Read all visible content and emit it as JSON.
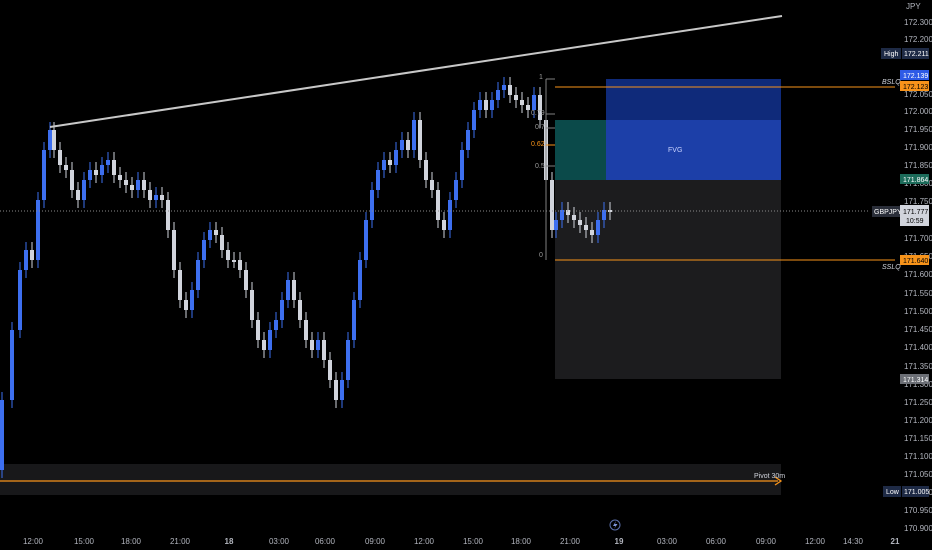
{
  "symbol": "GBPJPY",
  "currency": "JPY",
  "colors": {
    "bull": "#3d6ff0",
    "bear": "#d1d4dc",
    "trendline": "#c8c8c8",
    "orange": "#f7931a",
    "fvg": "#1c3fa8",
    "fvg_dark": "#0f2a7a",
    "teal": "#0b4a4a",
    "gray_zone": "#1c1c1e",
    "pivot_band": "#1a1a1c"
  },
  "price_axis": {
    "ticks": [
      "172.300",
      "172.200",
      "172.050",
      "172.000",
      "171.950",
      "171.900",
      "171.850",
      "171.800",
      "171.750",
      "171.700",
      "171.650",
      "171.600",
      "171.550",
      "171.500",
      "171.450",
      "171.400",
      "171.350",
      "171.300",
      "171.250",
      "171.200",
      "171.150",
      "171.100",
      "171.050",
      "171.000",
      "170.950",
      "170.900"
    ],
    "high_label": "High",
    "high_value": "172.211",
    "low_label": "Low",
    "low_value": "171.005",
    "bslq_label": "BSLQ",
    "bslq_value": "172.123",
    "bslq_value2": "172.139",
    "sslq_label": "SSLQ",
    "sslq_value": "171.640",
    "fvg_low_value": "171.864",
    "current_value": "171.777",
    "countdown": "10:59",
    "lower_value": "171.314"
  },
  "time_axis": {
    "ticks": [
      "12:00",
      "15:00",
      "18:00",
      "21:00",
      "18",
      "03:00",
      "06:00",
      "09:00",
      "12:00",
      "15:00",
      "18:00",
      "21:00",
      "19",
      "03:00",
      "06:00",
      "09:00",
      "12:00",
      "14:30",
      "21"
    ]
  },
  "annotations": {
    "fvg_label": "FVG",
    "pivot_label": "Pivot 30m",
    "fib_levels": [
      "1",
      "0.79",
      "0.7",
      "0.62",
      "0.5",
      "0"
    ],
    "flash_icon": "lightning-icon"
  }
}
